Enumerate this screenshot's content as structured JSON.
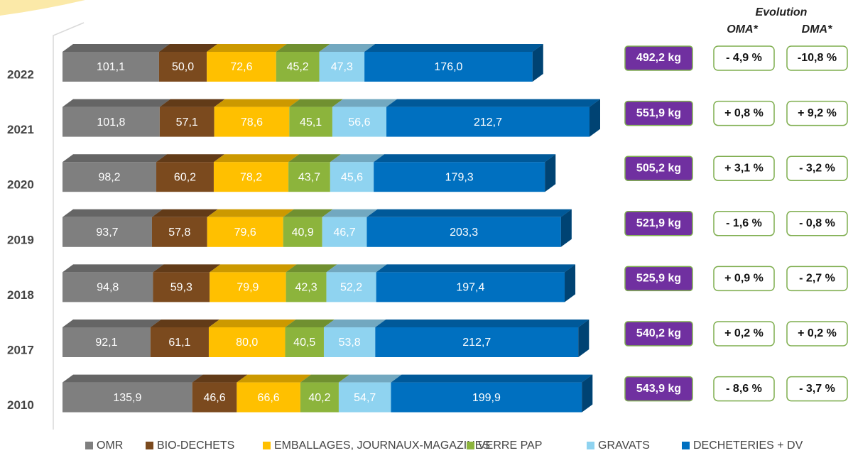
{
  "chart_data": {
    "type": "bar",
    "orientation": "horizontal",
    "stacked": true,
    "categories": [
      "2022",
      "2021",
      "2020",
      "2019",
      "2018",
      "2017",
      "2010"
    ],
    "series": [
      {
        "name": "OMR",
        "color": "#7f7f7f",
        "values": [
          101.1,
          101.8,
          98.2,
          93.7,
          94.8,
          92.1,
          135.9
        ],
        "value_labels": [
          "101,1",
          "101,8",
          "98,2",
          "93,7",
          "94,8",
          "92,1",
          "135,9"
        ]
      },
      {
        "name": "BIO-DECHETS",
        "color": "#7b4a1e",
        "values": [
          50.0,
          57.1,
          60.2,
          57.8,
          59.3,
          61.1,
          46.6
        ],
        "value_labels": [
          "50,0",
          "57,1",
          "60,2",
          "57,8",
          "59,3",
          "61,1",
          "46,6"
        ]
      },
      {
        "name": "EMBALLAGES, JOURNAUX-MAGAZINES",
        "color": "#ffc000",
        "values": [
          72.6,
          78.6,
          78.2,
          79.6,
          79.9,
          80.0,
          66.6
        ],
        "value_labels": [
          "72,6",
          "78,6",
          "78,2",
          "79,6",
          "79,9",
          "80,0",
          "66,6"
        ]
      },
      {
        "name": "VERRE PAP",
        "color": "#8cb43c",
        "values": [
          45.2,
          45.1,
          43.7,
          40.9,
          42.3,
          40.5,
          40.2
        ],
        "value_labels": [
          "45,2",
          "45,1",
          "43,7",
          "40,9",
          "42,3",
          "40,5",
          "40,2"
        ]
      },
      {
        "name": "GRAVATS",
        "color": "#8fd3f0",
        "values": [
          47.3,
          56.6,
          45.6,
          46.7,
          52.2,
          53.8,
          54.7
        ],
        "value_labels": [
          "47,3",
          "56,6",
          "45,6",
          "46,7",
          "52,2",
          "53,8",
          "54,7"
        ]
      },
      {
        "name": "DECHETERIES + DV",
        "color": "#0070c0",
        "values": [
          176.0,
          212.7,
          179.3,
          203.3,
          197.4,
          212.7,
          199.9
        ],
        "value_labels": [
          "176,0",
          "212,7",
          "179,3",
          "203,3",
          "197,4",
          "212,7",
          "199,9"
        ]
      }
    ],
    "totals": {
      "color": "#7030a0",
      "values": [
        492.2,
        551.9,
        505.2,
        521.9,
        525.9,
        540.2,
        543.9
      ],
      "value_labels": [
        "492,2 kg",
        "551,9 kg",
        "505,2 kg",
        "521,9 kg",
        "525,9 kg",
        "540,2 kg",
        "543,9 kg"
      ]
    },
    "evolution": {
      "title": "Evolution",
      "columns": [
        {
          "name": "OMA*",
          "values": [
            -4.9,
            0.8,
            3.1,
            -1.6,
            0.9,
            0.2,
            -8.6
          ],
          "value_labels": [
            "- 4,9 %",
            "+ 0,8 %",
            "+ 3,1 %",
            "- 1,6 %",
            "+ 0,9 %",
            "+ 0,2 %",
            "- 8,6 %"
          ]
        },
        {
          "name": "DMA*",
          "values": [
            -10.8,
            9.2,
            -3.2,
            -0.8,
            -2.7,
            0.2,
            -3.7
          ],
          "value_labels": [
            "-10,8 %",
            "+ 9,2 %",
            "- 3,2 %",
            "- 0,8 %",
            "- 2,7 %",
            "+ 0,2 %",
            "- 3,7 %"
          ]
        }
      ]
    },
    "legend": "bottom"
  }
}
